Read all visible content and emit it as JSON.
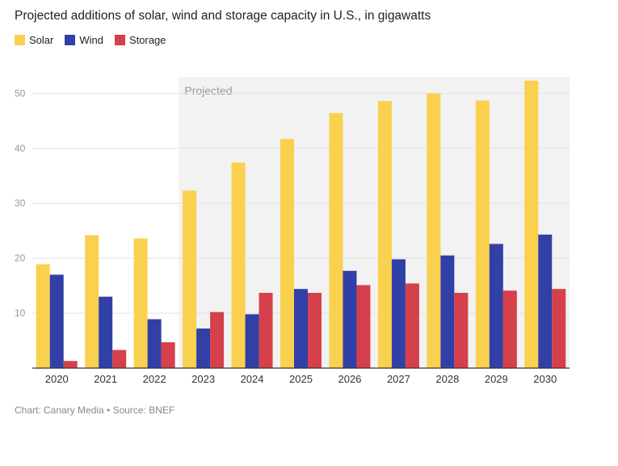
{
  "header": {
    "title": "Projected additions of solar, wind and storage capacity in U.S., in gigawatts"
  },
  "legend": [
    {
      "label": "Solar",
      "color": "#F9D14E"
    },
    {
      "label": "Wind",
      "color": "#3140A7"
    },
    {
      "label": "Storage",
      "color": "#D6404A"
    }
  ],
  "footer": {
    "source": "Chart: Canary Media • Source: BNEF"
  },
  "chart_data": {
    "type": "bar",
    "title": "Projected additions of solar, wind and storage capacity in U.S., in gigawatts",
    "xlabel": "",
    "ylabel": "",
    "categories": [
      "2020",
      "2021",
      "2022",
      "2023",
      "2024",
      "2025",
      "2026",
      "2027",
      "2028",
      "2029",
      "2030"
    ],
    "series": [
      {
        "name": "Solar",
        "color": "#F9D14E",
        "values": [
          18.9,
          24.2,
          23.6,
          32.3,
          37.4,
          41.7,
          46.4,
          48.6,
          50.0,
          48.7,
          52.3
        ]
      },
      {
        "name": "Wind",
        "color": "#3140A7",
        "values": [
          17.0,
          13.0,
          8.9,
          7.2,
          9.8,
          14.4,
          17.7,
          19.8,
          20.5,
          22.6,
          24.3
        ]
      },
      {
        "name": "Storage",
        "color": "#D6404A",
        "values": [
          1.3,
          3.3,
          4.7,
          10.2,
          13.7,
          13.7,
          15.1,
          15.4,
          13.7,
          14.1,
          14.4
        ]
      }
    ],
    "yticks": [
      10,
      20,
      30,
      40,
      50
    ],
    "ylim": [
      0,
      53
    ],
    "grid": true,
    "annotation": {
      "label": "Projected",
      "from_category": "2023",
      "to_category": "2030"
    },
    "legend_position": "top-left"
  }
}
